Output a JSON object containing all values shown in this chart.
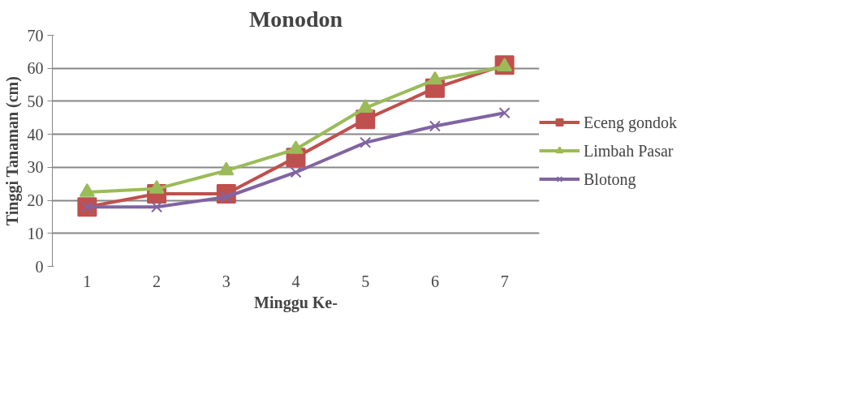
{
  "chart_data": {
    "type": "line",
    "title": "Monodon",
    "xlabel": "Minggu Ke-",
    "ylabel": "Tinggi Tanaman (cm)",
    "categories": [
      "1",
      "2",
      "3",
      "4",
      "5",
      "6",
      "7"
    ],
    "series": [
      {
        "name": "Eceng gondok",
        "color": "#c0504d",
        "marker": "square",
        "values": [
          18,
          22,
          22,
          33,
          44.5,
          54,
          61
        ]
      },
      {
        "name": "Limbah Pasar",
        "color": "#9bbb59",
        "marker": "triangle",
        "values": [
          22.5,
          23.5,
          29,
          35.5,
          48,
          56.5,
          60.5
        ]
      },
      {
        "name": "Blotong",
        "color": "#8064a2",
        "marker": "cross",
        "values": [
          18,
          18,
          21,
          28.5,
          37.5,
          42.5,
          46.5
        ]
      }
    ],
    "ylim": [
      0,
      70
    ],
    "yticks": [
      0,
      10,
      20,
      30,
      40,
      50,
      60,
      70
    ],
    "grid": "y",
    "legend": "right"
  }
}
